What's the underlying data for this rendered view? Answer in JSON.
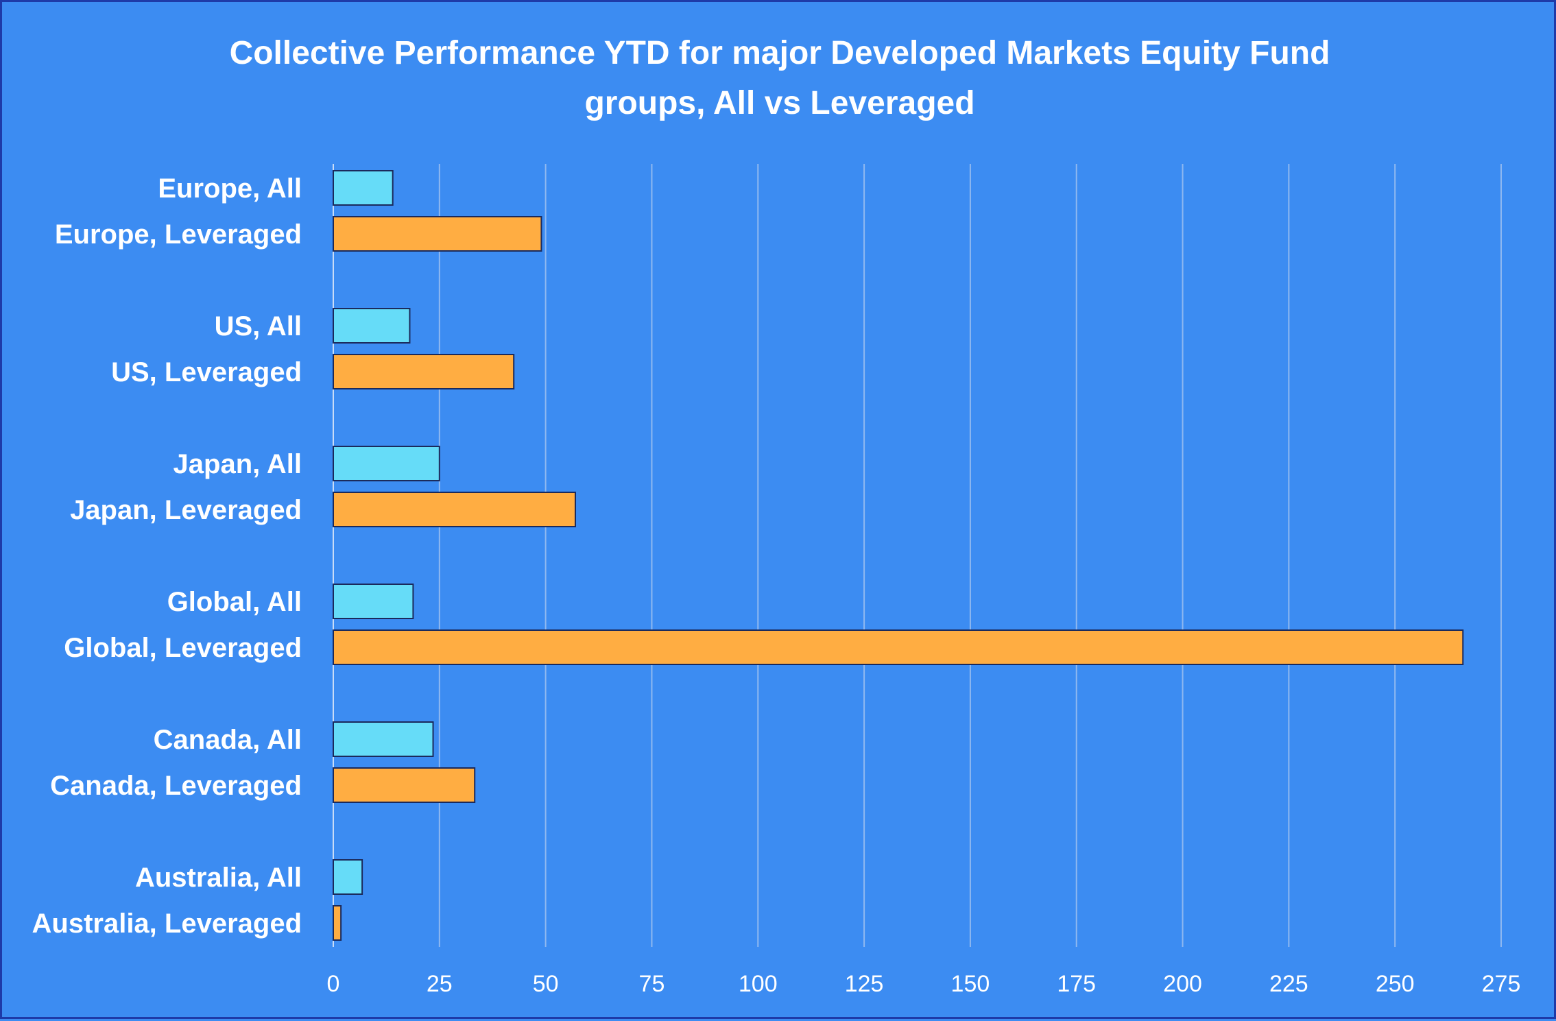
{
  "chart_data": {
    "type": "bar",
    "orientation": "horizontal",
    "title": "Collective Performance YTD for major Developed Markets Equity Fund groups, All vs Leveraged",
    "title_lines": [
      "Collective Performance YTD for major Developed Markets Equity Fund",
      "groups, All vs Leveraged"
    ],
    "xlim": [
      0,
      275
    ],
    "x_ticks": [
      0,
      25,
      50,
      75,
      100,
      125,
      150,
      175,
      200,
      225,
      250,
      275
    ],
    "grid": true,
    "legend": "none",
    "colors": {
      "all": "#66dcf8",
      "leveraged": "#ffad42",
      "background": "#3c8cf2"
    },
    "categories": [
      "Europe, All",
      "Europe, Leveraged",
      "US, All",
      "US, Leveraged",
      "Japan, All",
      "Japan, Leveraged",
      "Global, All",
      "Global, Leveraged",
      "Canada, All",
      "Canada, Leveraged",
      "Australia, All",
      "Australia, Leveraged"
    ],
    "values": [
      14,
      49,
      18,
      42.5,
      25,
      57,
      18.8,
      266,
      23.5,
      33.3,
      6.8,
      1.8
    ],
    "series_of_bar": [
      "all",
      "leveraged",
      "all",
      "leveraged",
      "all",
      "leveraged",
      "all",
      "leveraged",
      "all",
      "leveraged",
      "all",
      "leveraged"
    ]
  }
}
